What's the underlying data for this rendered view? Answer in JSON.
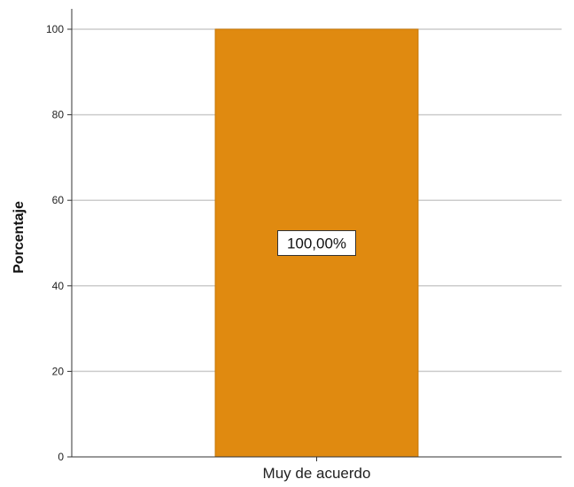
{
  "chart_data": {
    "type": "bar",
    "categories": [
      "Muy de acuerdo"
    ],
    "values": [
      100
    ],
    "data_labels": [
      "100,00%"
    ],
    "title": "",
    "xlabel": "",
    "ylabel": "Porcentaje",
    "ylim": [
      0,
      100
    ],
    "yticks": [
      0,
      20,
      40,
      60,
      80,
      100
    ],
    "grid": true,
    "legend": "none",
    "colors": {
      "bar": "#e08a10",
      "bar_edge": "#c77806",
      "grid": "#cccccc",
      "axis": "#333333"
    }
  }
}
